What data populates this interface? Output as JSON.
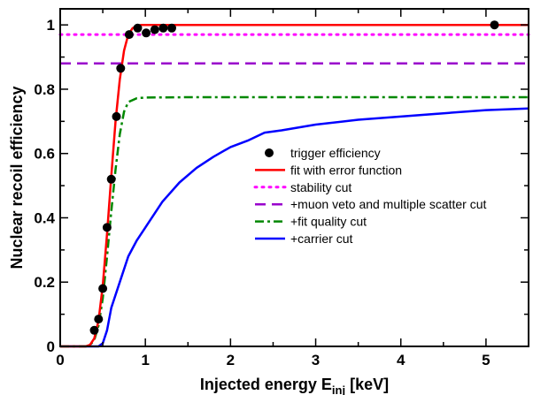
{
  "chart_data": {
    "type": "line",
    "title": "",
    "xlabel": "Injected energy E",
    "xlabel_sub": "inj",
    "xlabel_unit": " [keV]",
    "ylabel": "Nuclear recoil efficiency",
    "xlim": [
      0,
      5.5
    ],
    "ylim": [
      0,
      1.05
    ],
    "x_ticks": [
      0,
      1,
      2,
      3,
      4,
      5
    ],
    "y_ticks": [
      0,
      0.2,
      0.4,
      0.6,
      0.8,
      1
    ],
    "x_tick_labels": [
      "0",
      "1",
      "2",
      "3",
      "4",
      "5"
    ],
    "y_tick_labels": [
      "0",
      "0.2",
      "0.4",
      "0.6",
      "0.8",
      "1"
    ],
    "grid": false,
    "legend_position": "center-right",
    "series": [
      {
        "name": "trigger efficiency",
        "style": "points",
        "color": "#000000",
        "x": [
          0.4,
          0.45,
          0.5,
          0.55,
          0.6,
          0.66,
          0.71,
          0.81,
          0.91,
          1.01,
          1.11,
          1.21,
          1.31,
          5.1
        ],
        "y": [
          0.05,
          0.085,
          0.18,
          0.37,
          0.52,
          0.715,
          0.865,
          0.97,
          0.99,
          0.975,
          0.985,
          0.99,
          0.99,
          1.0
        ]
      },
      {
        "name": "fit with error function",
        "style": "solid",
        "color": "#ff0000",
        "x": [
          0,
          0.3,
          0.35,
          0.4,
          0.45,
          0.5,
          0.55,
          0.6,
          0.65,
          0.7,
          0.75,
          0.8,
          0.85,
          0.9,
          0.95,
          1.0,
          1.2,
          5.5
        ],
        "y": [
          0,
          0.0,
          0.005,
          0.025,
          0.08,
          0.19,
          0.35,
          0.53,
          0.7,
          0.83,
          0.92,
          0.97,
          0.99,
          0.997,
          1.0,
          1.0,
          1.0,
          1.0
        ]
      },
      {
        "name": "stability cut",
        "style": "dotted",
        "color": "#ff00ff",
        "x": [
          0,
          5.5
        ],
        "y": [
          0.97,
          0.97
        ]
      },
      {
        "name": "+muon veto and multiple scatter cut",
        "style": "dashed",
        "color": "#9900cc",
        "x": [
          0,
          5.5
        ],
        "y": [
          0.88,
          0.88
        ]
      },
      {
        "name": "+fit quality cut",
        "style": "dashdot",
        "color": "#008800",
        "x": [
          0,
          0.3,
          0.35,
          0.4,
          0.45,
          0.5,
          0.55,
          0.6,
          0.65,
          0.7,
          0.75,
          0.8,
          0.9,
          1.0,
          1.5,
          5.5
        ],
        "y": [
          0,
          0.0,
          0.004,
          0.02,
          0.065,
          0.15,
          0.28,
          0.42,
          0.55,
          0.66,
          0.73,
          0.76,
          0.772,
          0.774,
          0.775,
          0.775
        ]
      },
      {
        "name": "+carrier cut",
        "style": "solid",
        "color": "#0000ff",
        "x": [
          0,
          0.45,
          0.5,
          0.55,
          0.6,
          0.7,
          0.8,
          0.9,
          1.0,
          1.2,
          1.4,
          1.6,
          1.8,
          2.0,
          2.2,
          2.4,
          2.6,
          3.0,
          3.5,
          4.0,
          4.5,
          5.0,
          5.5
        ],
        "y": [
          0,
          0.0,
          0.01,
          0.05,
          0.12,
          0.2,
          0.28,
          0.33,
          0.37,
          0.45,
          0.51,
          0.555,
          0.59,
          0.62,
          0.64,
          0.665,
          0.672,
          0.69,
          0.705,
          0.715,
          0.725,
          0.735,
          0.74
        ]
      }
    ]
  }
}
